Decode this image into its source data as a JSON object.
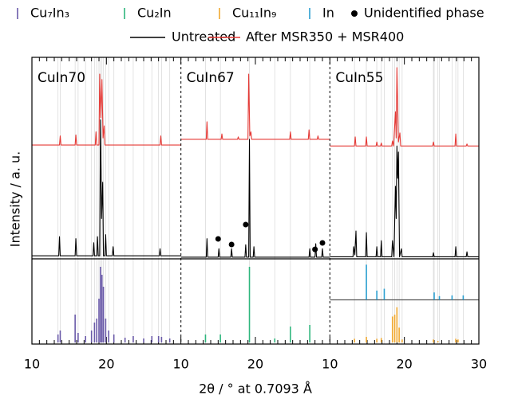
{
  "chart_data": [
    {
      "type": "line",
      "title": "CuIn70",
      "y_label": "Intensity / a. u.",
      "xlim": [
        10,
        30
      ],
      "xticks": [
        10,
        20
      ],
      "minor_xticks": [
        11,
        12,
        13,
        14,
        15,
        16,
        17,
        18,
        19,
        21,
        22,
        23,
        24,
        25,
        26,
        27,
        28,
        29
      ],
      "ylim": [
        0,
        100
      ],
      "grid": true,
      "series": [
        {
          "name": "Untreated",
          "color": "#000000",
          "x": [
            10,
            13.6,
            13.7,
            13.8,
            15.8,
            15.9,
            16,
            18.2,
            18.3,
            18.4,
            18.7,
            18.8,
            18.9,
            19.1,
            19.2,
            19.35,
            19.5,
            19.6,
            19.8,
            19.9,
            20,
            20.8,
            20.9,
            21,
            27.1,
            27.2,
            27.3,
            30
          ],
          "values": [
            1.5,
            1.5,
            11,
            1.5,
            1.5,
            10,
            1.5,
            1.5,
            8,
            1.5,
            1.5,
            11,
            1.5,
            1.5,
            69,
            20,
            38,
            1.5,
            1.5,
            12,
            1.5,
            1.5,
            6,
            1.5,
            1.5,
            5,
            1.5,
            1.5
          ]
        },
        {
          "name": "After MSR350 + MSR400",
          "color": "#e53935",
          "x": [
            10,
            13.7,
            13.8,
            13.9,
            15.8,
            15.9,
            16,
            18.5,
            18.6,
            18.7,
            19,
            19.1,
            19.25,
            19.4,
            19.55,
            19.7,
            19.8,
            27.2,
            27.3,
            27.4,
            30
          ],
          "values": [
            56.5,
            56.5,
            61,
            56.5,
            56.5,
            61.5,
            56.5,
            56.5,
            63,
            56.5,
            56.5,
            91.7,
            70,
            89,
            60,
            66,
            56.5,
            56.5,
            61,
            56.5,
            56.5
          ]
        }
      ],
      "references": [
        {
          "name": "Cu₇In₃",
          "color": "#6a5aa8",
          "ylim": [
            0,
            100
          ],
          "x": [
            13.5,
            13.8,
            15.8,
            16.2,
            17.2,
            18,
            18.4,
            18.7,
            19,
            19.2,
            19.4,
            19.6,
            19.9,
            20.3,
            21,
            22.5,
            23.6,
            25,
            26.1,
            27,
            27.4,
            28.5
          ],
          "values": [
            10,
            15,
            35,
            12,
            8,
            15,
            25,
            30,
            55,
            95,
            85,
            70,
            30,
            15,
            10,
            6,
            8,
            5,
            8,
            8,
            7,
            5
          ]
        }
      ]
    },
    {
      "type": "line",
      "title": "CuIn67",
      "x_label": "2θ / ° at 0.7093 Å",
      "xlim": [
        10,
        30
      ],
      "xticks": [
        10,
        20
      ],
      "minor_xticks": [
        11,
        12,
        13,
        14,
        15,
        16,
        17,
        18,
        19,
        21,
        22,
        23,
        24,
        25,
        26,
        27,
        28,
        29
      ],
      "ylim": [
        0,
        100
      ],
      "grid": true,
      "series": [
        {
          "name": "Untreated",
          "color": "#000000",
          "x": [
            10,
            13.4,
            13.5,
            13.6,
            15,
            15.1,
            15.2,
            16.7,
            16.8,
            16.9,
            18.6,
            18.7,
            18.8,
            19.1,
            19.2,
            19.3,
            19.7,
            19.8,
            19.9,
            27.2,
            27.3,
            27.4,
            28,
            28.1,
            28.2,
            28.9,
            29,
            29.1,
            30
          ],
          "values": [
            0.8,
            0.8,
            10,
            0.8,
            0.8,
            5,
            0.8,
            0.8,
            5,
            0.8,
            0.8,
            7,
            0.8,
            0.8,
            59.3,
            0.8,
            0.8,
            6,
            0.8,
            0.8,
            5,
            0.8,
            0.8,
            7.5,
            0.8,
            0.8,
            5,
            0.8,
            0.8
          ]
        },
        {
          "name": "After MSR350 + MSR400",
          "color": "#e53935",
          "x": [
            10,
            13.4,
            13.5,
            13.6,
            15.4,
            15.5,
            15.6,
            17.6,
            17.7,
            17.8,
            19,
            19.1,
            19.25,
            19.4,
            19.5,
            24.6,
            24.7,
            24.8,
            27.1,
            27.2,
            27.3,
            28.3,
            28.4,
            28.5,
            30
          ],
          "values": [
            59.3,
            59.3,
            68,
            59.3,
            59.3,
            62,
            59.3,
            59.3,
            60.5,
            59.3,
            59.3,
            91.7,
            61,
            63,
            59.3,
            59.3,
            63,
            59.3,
            59.3,
            64,
            59.3,
            59.3,
            61,
            59.3,
            59.3
          ]
        }
      ],
      "markers": {
        "name": "Unidentified phase",
        "color": "#000000",
        "x": [
          15,
          16.8,
          18.7,
          28,
          29
        ],
        "values": [
          9.9,
          7.1,
          17,
          4.7,
          7.9
        ]
      },
      "references": [
        {
          "name": "Cu₂In",
          "color": "#2eb67d",
          "ylim": [
            0,
            100
          ],
          "x": [
            13.3,
            15.3,
            19.2,
            22.6,
            24.7,
            27.3
          ],
          "values": [
            10,
            10,
            95,
            5,
            20,
            22
          ]
        }
      ]
    },
    {
      "type": "line",
      "title": "CuIn55",
      "xlim": [
        10,
        30
      ],
      "xticks": [
        10,
        20,
        30
      ],
      "minor_xticks": [
        11,
        12,
        13,
        14,
        15,
        16,
        17,
        18,
        19,
        21,
        22,
        23,
        24,
        25,
        26,
        27,
        28,
        29
      ],
      "ylim": [
        0,
        100
      ],
      "grid": true,
      "series": [
        {
          "name": "Untreated",
          "color": "#000000",
          "x": [
            10,
            13.1,
            13.2,
            13.35,
            13.5,
            13.6,
            14.8,
            14.9,
            15,
            16.2,
            16.3,
            16.4,
            16.8,
            16.9,
            17,
            18.3,
            18.4,
            18.6,
            18.8,
            18.9,
            19,
            19.1,
            19.2,
            19.35,
            19.6,
            19.7,
            23.8,
            23.9,
            24,
            26.8,
            26.9,
            27,
            28.3,
            28.4,
            28.5,
            30
          ],
          "values": [
            1,
            1,
            6,
            2,
            13.8,
            1,
            1,
            13,
            1,
            1,
            6,
            1,
            1,
            9,
            1,
            1,
            9,
            1,
            36,
            20,
            56,
            40,
            53,
            1,
            5,
            1,
            1,
            3,
            1,
            1,
            6,
            1,
            1,
            3.5,
            1,
            1
          ]
        },
        {
          "name": "After MSR350 + MSR400",
          "color": "#e53935",
          "x": [
            10,
            13.3,
            13.4,
            13.5,
            14.8,
            14.9,
            15,
            16.2,
            16.3,
            16.4,
            16.8,
            16.9,
            17,
            18.3,
            18.4,
            18.55,
            18.8,
            18.9,
            19,
            19.2,
            19.4,
            19.5,
            23.8,
            23.9,
            24,
            26.8,
            26.9,
            27,
            28.3,
            28.4,
            28.5,
            30
          ],
          "values": [
            56,
            56,
            60.5,
            56,
            56,
            60.5,
            56,
            56,
            58,
            56,
            56,
            57.5,
            56,
            56,
            58.5,
            56,
            73,
            60,
            94.9,
            58,
            62.5,
            56,
            56,
            58,
            56,
            56,
            62,
            56,
            56,
            57,
            56,
            56
          ]
        }
      ],
      "references": [
        {
          "name": "In",
          "color": "#2b9fd0",
          "ylim": [
            0,
            100
          ],
          "x": [
            14.9,
            16.3,
            17.3,
            24,
            24.7,
            26.4,
            27.9
          ],
          "values": [
            95,
            25,
            30,
            20,
            10,
            12,
            12
          ]
        },
        {
          "name": "Cu₁₁In₉",
          "color": "#f0a830",
          "ylim": [
            0,
            100
          ],
          "x": [
            13.3,
            14.9,
            16.3,
            16.9,
            18.4,
            18.7,
            19,
            19.3,
            19.7,
            23.9,
            24.5,
            26.9,
            27.2
          ],
          "values": [
            10,
            15,
            10,
            12,
            70,
            75,
            95,
            40,
            8,
            8,
            4,
            10,
            8
          ]
        }
      ]
    }
  ]
}
